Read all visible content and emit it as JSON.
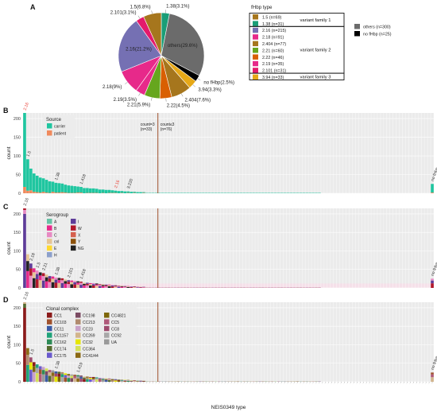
{
  "colors": {
    "panel_bg": "#ebebeb",
    "grid": "#ffffff",
    "carrier": "#1fc6a0",
    "patient": "#f08a5d",
    "highlight_red": "#e8362b",
    "vline": "#a0522d",
    "others_pie": "#6b6b6b",
    "no_fhbp": "#000000",
    "seg_ny": "#f6c6dd",
    "strip": "#fadbe8"
  },
  "panel_labels": [
    "A",
    "B",
    "C",
    "D"
  ],
  "pie": {
    "slices": [
      {
        "label": "1.38(3.1%)",
        "pct": 3.1,
        "color": "#1a9e77"
      },
      {
        "label": "others(29.6%)",
        "pct": 29.6,
        "color": "#6b6b6b"
      },
      {
        "label": "no fHbp(2.5%)",
        "pct": 2.5,
        "color": "#000000"
      },
      {
        "label": "3.94(3.3%)",
        "pct": 3.3,
        "color": "#e6a817"
      },
      {
        "label": "2.404(7.6%)",
        "pct": 7.6,
        "color": "#a6761d"
      },
      {
        "label": "2.22(4.5%)",
        "pct": 4.5,
        "color": "#d95f02"
      },
      {
        "label": "2.21(5.9%)",
        "pct": 5.9,
        "color": "#66a61e"
      },
      {
        "label": "2.19(3.5%)",
        "pct": 3.5,
        "color": "#e7298a"
      },
      {
        "label": "2.18(9%)",
        "pct": 9.0,
        "color": "#e7298a"
      },
      {
        "label": "2.16(21.2%)",
        "pct": 21.2,
        "color": "#7570b3"
      },
      {
        "label": "2.101(3.1%)",
        "pct": 3.1,
        "color": "#e41a6c"
      },
      {
        "label": "1.5(6.8%)",
        "pct": 6.8,
        "color": "#a6761d"
      }
    ]
  },
  "fhbp_legend": {
    "title": "fHbp type",
    "rows": [
      {
        "label": "1.5  (n=69)",
        "color": "#a6761d"
      },
      {
        "label": "1.38  (n=31)",
        "color": "#1a9e77"
      },
      {
        "label": "2.16  (n=215)",
        "color": "#7570b3"
      },
      {
        "label": "2.18  (n=91)",
        "color": "#e7298a"
      },
      {
        "label": "2.404  (n=77)",
        "color": "#a6761d"
      },
      {
        "label": "2.21  (n=60)",
        "color": "#66a61e"
      },
      {
        "label": "2.22  (n=46)",
        "color": "#d95f02"
      },
      {
        "label": "2.19  (n=35)",
        "color": "#e7298a"
      },
      {
        "label": "2.101  (n=31)",
        "color": "#e41a6c"
      },
      {
        "label": "3.94  (n=33)",
        "color": "#e6a817"
      }
    ],
    "families": [
      "variant family 1",
      "variant family 2",
      "variant family 3"
    ],
    "extra": [
      {
        "label": "others (n=300)",
        "color": "#6b6b6b"
      },
      {
        "label": "no fHbp (n=25)",
        "color": "#000000"
      }
    ]
  },
  "chart_data": [
    {
      "panel": "B",
      "type": "bar",
      "ylabel": "count",
      "ylim": [
        0,
        215
      ],
      "yticks": [
        0,
        50,
        100,
        150,
        200
      ],
      "legend": {
        "title": "Source",
        "items": [
          {
            "label": "carrier",
            "color": "#1fc6a0"
          },
          {
            "label": "patient",
            "color": "#f08a5d"
          }
        ]
      },
      "series": [
        {
          "name": "carrier",
          "values": [
            198,
            84,
            58,
            49,
            44,
            40,
            36,
            34,
            31,
            27,
            26,
            25,
            23,
            21,
            20,
            19,
            18,
            16,
            15,
            14,
            13,
            12,
            12,
            11,
            10,
            9,
            9,
            8,
            7,
            6,
            6,
            5,
            5,
            4,
            4,
            3,
            3,
            3,
            2
          ]
        },
        {
          "name": "patient",
          "values": [
            17,
            7,
            8,
            4,
            3,
            2,
            4,
            2,
            1,
            4,
            2,
            2,
            3,
            2,
            1,
            1,
            1,
            2,
            2,
            0,
            1,
            1,
            1,
            1,
            0,
            1,
            0,
            1,
            1,
            1,
            0,
            1,
            0,
            1,
            0,
            1,
            0,
            0,
            1
          ]
        }
      ],
      "bar_labels": [
        {
          "label": "2.16",
          "index": 0,
          "color": "#e8362b"
        },
        {
          "label": "1.5",
          "index": 1,
          "color": "#333333"
        },
        {
          "label": "1.38",
          "index": 10,
          "color": "#333333"
        },
        {
          "label": "1.418",
          "index": 18,
          "color": "#333333"
        },
        {
          "label": "2.16",
          "index": 29,
          "color": "#e8362b"
        },
        {
          "label": "3.220",
          "index": 33,
          "color": "#333333"
        },
        {
          "label": "no fHbp",
          "index": 130,
          "color": "#333333"
        }
      ],
      "tail": {
        "index": 130,
        "value": 25
      },
      "n_categories": 131,
      "vline_index": 43,
      "annotations": [
        "count=3 (n=33)",
        "count=3 (n=76)"
      ]
    },
    {
      "panel": "C",
      "type": "bar",
      "ylabel": "count",
      "ylim": [
        0,
        215
      ],
      "yticks": [
        0,
        50,
        100,
        150,
        200
      ],
      "legend": {
        "title": "Serogroup",
        "items": [
          {
            "label": "A",
            "color": "#66c2a5"
          },
          {
            "label": "B",
            "color": "#e7298a"
          },
          {
            "label": "C",
            "color": "#e78ac3"
          },
          {
            "label": "cnl",
            "color": "#e5c494"
          },
          {
            "label": "E",
            "color": "#ffd92f"
          },
          {
            "label": "H",
            "color": "#8da0cb"
          },
          {
            "label": "I",
            "color": "#5e3c99"
          },
          {
            "label": "W",
            "color": "#b2182b"
          },
          {
            "label": "X",
            "color": "#d6604d"
          },
          {
            "label": "Y",
            "color": "#8c510a"
          },
          {
            "label": "NG",
            "color": "#222222"
          }
        ]
      },
      "bar_labels": [
        {
          "label": "2.16",
          "index": 0,
          "color": "#333333"
        },
        {
          "label": "2.18",
          "index": 2,
          "color": "#333333"
        },
        {
          "label": "1.5",
          "index": 4,
          "color": "#333333"
        },
        {
          "label": "2.21",
          "index": 6,
          "color": "#333333"
        },
        {
          "label": "1.38",
          "index": 10,
          "color": "#333333"
        },
        {
          "label": "2.101",
          "index": 14,
          "color": "#333333"
        },
        {
          "label": "1.418",
          "index": 18,
          "color": "#333333"
        },
        {
          "label": "no fHbp",
          "index": 130,
          "color": "#333333"
        }
      ]
    },
    {
      "panel": "D",
      "type": "bar",
      "ylabel": "count",
      "ylim": [
        0,
        215
      ],
      "yticks": [
        0,
        50,
        100,
        150,
        200
      ],
      "xlabel": "NEIS0349 type",
      "legend": {
        "title": "Clonal complex",
        "items": [
          {
            "label": "CC1",
            "color": "#8b1a1a"
          },
          {
            "label": "CC103",
            "color": "#a0522d"
          },
          {
            "label": "CC11",
            "color": "#3b5ba5"
          },
          {
            "label": "CC1157",
            "color": "#1fa37a"
          },
          {
            "label": "CC162",
            "color": "#2e8b57"
          },
          {
            "label": "CC174",
            "color": "#556b2f"
          },
          {
            "label": "CC175",
            "color": "#6a5acd"
          },
          {
            "label": "CC198",
            "color": "#7b4a62"
          },
          {
            "label": "CC213",
            "color": "#b08b6e"
          },
          {
            "label": "CC23",
            "color": "#c8a2c8"
          },
          {
            "label": "CC269",
            "color": "#d2b48c"
          },
          {
            "label": "CC32",
            "color": "#e6e600"
          },
          {
            "label": "CC364",
            "color": "#d4e157"
          },
          {
            "label": "CC41/44",
            "color": "#8b6914"
          },
          {
            "label": "CC4821",
            "color": "#7d6608"
          },
          {
            "label": "CC5",
            "color": "#b05a7a"
          },
          {
            "label": "CC8",
            "color": "#9e4b6d"
          },
          {
            "label": "CC92",
            "color": "#a8a8a8"
          },
          {
            "label": "UA",
            "color": "#9a9a9a"
          }
        ]
      },
      "bar_labels": [
        {
          "label": "2.16",
          "index": 0,
          "color": "#333333"
        },
        {
          "label": "1.5",
          "index": 2,
          "color": "#333333"
        },
        {
          "label": "1.38",
          "index": 10,
          "color": "#333333"
        },
        {
          "label": "1.419",
          "index": 17,
          "color": "#333333"
        },
        {
          "label": "no fHbp",
          "index": 130,
          "color": "#333333"
        }
      ]
    }
  ]
}
